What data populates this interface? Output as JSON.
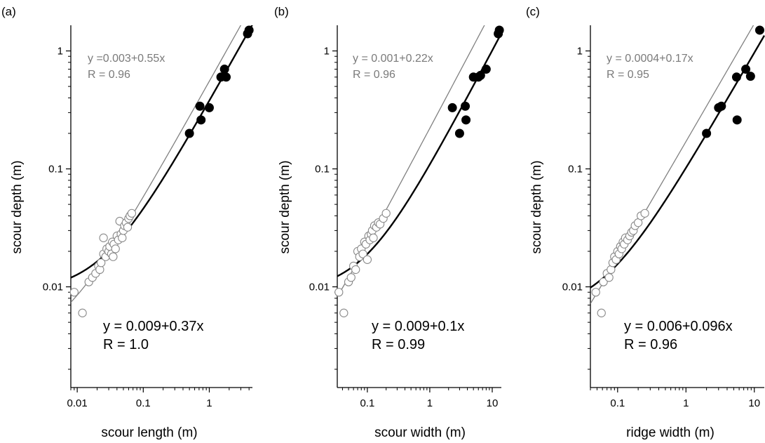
{
  "chart_data": [
    {
      "type": "scatter",
      "panel_label": "(a)",
      "xlabel": "scour length (m)",
      "ylabel": "scour depth (m)",
      "xscale": "log",
      "yscale": "log",
      "xlim": [
        0.008,
        4.5
      ],
      "ylim": [
        0.0014,
        1.65
      ],
      "xticks": [
        0.01,
        0.1,
        1
      ],
      "xtick_labels": [
        "0.01",
        "0.1",
        "1"
      ],
      "yticks": [
        0.01,
        0.1,
        1
      ],
      "ytick_labels": [
        "0.01",
        "0.1",
        "1"
      ],
      "fits": [
        {
          "a": 0.003,
          "b": 0.55,
          "style": "thin-grey",
          "eq": "y =0.003+0.55x",
          "r": "R = 0.96"
        },
        {
          "a": 0.009,
          "b": 0.37,
          "style": "thick-black",
          "eq": "y = 0.009+0.37x",
          "r": "R = 1.0"
        }
      ],
      "series": [
        {
          "marker": "open",
          "x": [
            0.009,
            0.012,
            0.015,
            0.017,
            0.019,
            0.021,
            0.022,
            0.023,
            0.025,
            0.025,
            0.027,
            0.028,
            0.03,
            0.031,
            0.033,
            0.034,
            0.035,
            0.036,
            0.038,
            0.04,
            0.042,
            0.044,
            0.046,
            0.048,
            0.05,
            0.052,
            0.055,
            0.058,
            0.06,
            0.063,
            0.067
          ],
          "y": [
            0.009,
            0.006,
            0.011,
            0.012,
            0.013,
            0.015,
            0.014,
            0.016,
            0.019,
            0.026,
            0.018,
            0.021,
            0.02,
            0.022,
            0.019,
            0.024,
            0.018,
            0.023,
            0.021,
            0.027,
            0.025,
            0.036,
            0.028,
            0.026,
            0.03,
            0.033,
            0.035,
            0.032,
            0.038,
            0.04,
            0.042
          ]
        },
        {
          "marker": "filled",
          "x": [
            0.5,
            0.72,
            0.75,
            1.0,
            1.5,
            1.7,
            1.8,
            3.8,
            4.0
          ],
          "y": [
            0.2,
            0.34,
            0.26,
            0.33,
            0.6,
            0.7,
            0.6,
            1.4,
            1.5
          ]
        }
      ]
    },
    {
      "type": "scatter",
      "panel_label": "(b)",
      "xlabel": "scour width (m)",
      "ylabel": "scour depth (m)",
      "xscale": "log",
      "yscale": "log",
      "xlim": [
        0.033,
        14
      ],
      "ylim": [
        0.0014,
        1.65
      ],
      "xticks": [
        0.1,
        1,
        10
      ],
      "xtick_labels": [
        "0.1",
        "1",
        "10"
      ],
      "yticks": [
        0.01,
        0.1,
        1
      ],
      "ytick_labels": [
        "0.01",
        "0.1",
        "1"
      ],
      "fits": [
        {
          "a": 0.001,
          "b": 0.22,
          "style": "thin-grey",
          "eq": "y = 0.001+0.22x",
          "r": "R = 0.96"
        },
        {
          "a": 0.009,
          "b": 0.1,
          "style": "thick-black",
          "eq": "y = 0.009+0.1x",
          "r": "R = 0.99"
        }
      ],
      "series": [
        {
          "marker": "open",
          "x": [
            0.035,
            0.042,
            0.05,
            0.055,
            0.06,
            0.065,
            0.07,
            0.075,
            0.08,
            0.085,
            0.09,
            0.095,
            0.1,
            0.105,
            0.11,
            0.115,
            0.12,
            0.125,
            0.13,
            0.14,
            0.15,
            0.16,
            0.18,
            0.2
          ],
          "y": [
            0.009,
            0.006,
            0.011,
            0.012,
            0.015,
            0.014,
            0.02,
            0.018,
            0.021,
            0.019,
            0.024,
            0.023,
            0.017,
            0.027,
            0.025,
            0.028,
            0.03,
            0.026,
            0.033,
            0.032,
            0.035,
            0.034,
            0.038,
            0.042
          ]
        },
        {
          "marker": "filled",
          "x": [
            2.3,
            3.0,
            3.7,
            3.8,
            5.0,
            6.0,
            6.5,
            8.0,
            12.5,
            13.0
          ],
          "y": [
            0.33,
            0.2,
            0.34,
            0.26,
            0.6,
            0.6,
            0.62,
            0.7,
            1.4,
            1.5
          ]
        }
      ]
    },
    {
      "type": "scatter",
      "panel_label": "(c)",
      "xlabel": "ridge width (m)",
      "ylabel": "scour depth (m)",
      "xscale": "log",
      "yscale": "log",
      "xlim": [
        0.04,
        14
      ],
      "ylim": [
        0.0014,
        1.65
      ],
      "xticks": [
        0.1,
        1,
        10
      ],
      "xtick_labels": [
        "0.1",
        "1",
        "10"
      ],
      "yticks": [
        0.01,
        0.1,
        1
      ],
      "ytick_labels": [
        "0.01",
        "0.1",
        "1"
      ],
      "fits": [
        {
          "a": 0.0004,
          "b": 0.17,
          "style": "thin-grey",
          "eq": "y = 0.0004+0.17x",
          "r": "R = 0.95"
        },
        {
          "a": 0.006,
          "b": 0.096,
          "style": "thick-black",
          "eq": "y = 0.006+0.096x",
          "r": "R = 0.96"
        }
      ],
      "series": [
        {
          "marker": "open",
          "x": [
            0.048,
            0.058,
            0.062,
            0.07,
            0.075,
            0.08,
            0.085,
            0.09,
            0.095,
            0.1,
            0.105,
            0.11,
            0.115,
            0.12,
            0.125,
            0.13,
            0.14,
            0.15,
            0.16,
            0.17,
            0.18,
            0.2,
            0.22,
            0.25
          ],
          "y": [
            0.009,
            0.006,
            0.011,
            0.013,
            0.012,
            0.014,
            0.016,
            0.018,
            0.017,
            0.02,
            0.019,
            0.022,
            0.021,
            0.024,
            0.023,
            0.026,
            0.025,
            0.027,
            0.029,
            0.03,
            0.033,
            0.035,
            0.04,
            0.042
          ]
        },
        {
          "marker": "filled",
          "x": [
            2.0,
            3.0,
            3.3,
            5.5,
            5.6,
            7.5,
            8.8,
            12.0
          ],
          "y": [
            0.2,
            0.33,
            0.34,
            0.6,
            0.26,
            0.7,
            0.61,
            1.5
          ]
        }
      ]
    }
  ]
}
